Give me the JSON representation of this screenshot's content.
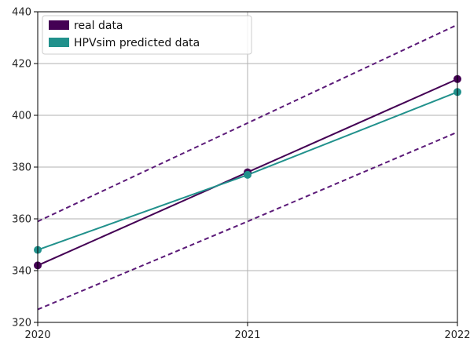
{
  "colors": {
    "real": "#440154",
    "predicted": "#21918c",
    "bounds": "#5b1a78",
    "grid": "#b0b0b0",
    "axis": "#000000"
  },
  "chart_data": {
    "type": "line",
    "title": "",
    "xlabel": "",
    "ylabel": "",
    "x": [
      2020,
      2021,
      2022
    ],
    "xticks": [
      "2020",
      "2021",
      "2022"
    ],
    "xlim": [
      2020,
      2022
    ],
    "ylim": [
      320,
      440
    ],
    "yticks": [
      "320",
      "340",
      "360",
      "380",
      "400",
      "420",
      "440"
    ],
    "grid": true,
    "legend_position": "top-left",
    "series": [
      {
        "name": "real data",
        "values": [
          342,
          378,
          414
        ],
        "style": "solid",
        "marker": "circle",
        "color_key": "real"
      },
      {
        "name": "HPVsim predicted data",
        "values": [
          348,
          377,
          409
        ],
        "style": "solid",
        "marker": "circle",
        "color_key": "predicted"
      }
    ],
    "bounds": [
      {
        "values": [
          359,
          397,
          435
        ],
        "style": "dashed",
        "color_key": "bounds"
      },
      {
        "values": [
          325,
          359,
          393.5
        ],
        "style": "dashed",
        "color_key": "bounds"
      }
    ]
  }
}
